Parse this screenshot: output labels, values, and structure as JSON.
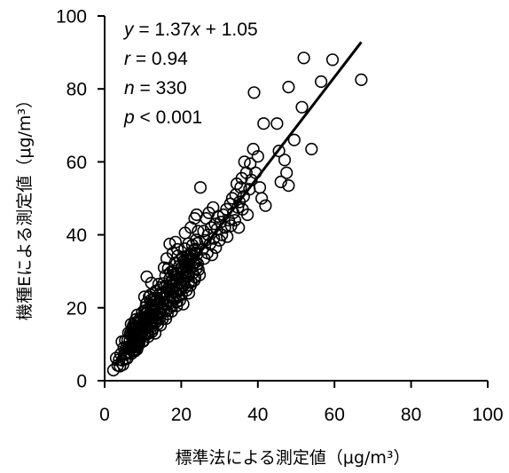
{
  "chart_data": {
    "type": "scatter",
    "xlabel": "標準法による測定値（μg/m³）",
    "ylabel": "機種Eによる測定値（μg/m³）",
    "xlim": [
      0,
      100
    ],
    "ylim": [
      0,
      100
    ],
    "xticks": [
      0,
      20,
      40,
      60,
      80,
      100
    ],
    "yticks": [
      0,
      20,
      40,
      60,
      80,
      100
    ],
    "grid": false,
    "colors": {
      "marker_stroke": "#000000",
      "line": "#000000",
      "axis": "#000000"
    },
    "regression": {
      "slope": 1.37,
      "intercept": 1.05,
      "x_range": [
        3,
        67
      ]
    },
    "annotation": [
      [
        {
          "text": "y",
          "italic": true
        },
        {
          "text": " = 1.37"
        },
        {
          "text": "x",
          "italic": true
        },
        {
          "text": " + 1.05"
        }
      ],
      [
        {
          "text": "r",
          "italic": true
        },
        {
          "text": " = 0.94"
        }
      ],
      [
        {
          "text": "n",
          "italic": true
        },
        {
          "text": " = 330"
        }
      ],
      [
        {
          "text": "p",
          "italic": true
        },
        {
          "text": " < 0.001"
        }
      ]
    ],
    "points": [
      [
        2.3,
        2.9
      ],
      [
        3.0,
        6.2
      ],
      [
        3.4,
        4.2
      ],
      [
        3.8,
        5.8
      ],
      [
        4.0,
        4.0
      ],
      [
        4.2,
        7.3
      ],
      [
        4.5,
        10.7
      ],
      [
        4.6,
        5.6
      ],
      [
        4.8,
        4.4
      ],
      [
        5.0,
        9.1
      ],
      [
        5.1,
        7.2
      ],
      [
        5.3,
        5.9
      ],
      [
        5.4,
        11.0
      ],
      [
        5.6,
        7.5
      ],
      [
        5.7,
        9.2
      ],
      [
        5.9,
        6.1
      ],
      [
        6.0,
        11.1
      ],
      [
        6.1,
        7.8
      ],
      [
        6.2,
        13.1
      ],
      [
        6.3,
        9.3
      ],
      [
        6.4,
        7.6
      ],
      [
        6.6,
        11.0
      ],
      [
        6.7,
        13.0
      ],
      [
        6.8,
        9.4
      ],
      [
        6.9,
        15.5
      ],
      [
        7.0,
        7.4
      ],
      [
        7.1,
        12.3
      ],
      [
        7.2,
        10.1
      ],
      [
        7.3,
        14.5
      ],
      [
        7.4,
        9.1
      ],
      [
        7.5,
        11.5
      ],
      [
        7.6,
        14.1
      ],
      [
        7.7,
        10.2
      ],
      [
        7.8,
        15.9
      ],
      [
        7.9,
        8.1
      ],
      [
        8.0,
        12.9
      ],
      [
        8.1,
        11.9
      ],
      [
        8.2,
        14.3
      ],
      [
        8.3,
        9.7
      ],
      [
        8.4,
        13.7
      ],
      [
        8.5,
        18.0
      ],
      [
        8.6,
        10.9
      ],
      [
        8.7,
        13.5
      ],
      [
        8.8,
        9.6
      ],
      [
        8.9,
        16.2
      ],
      [
        9.0,
        10.2
      ],
      [
        9.1,
        15.0
      ],
      [
        9.2,
        12.9
      ],
      [
        9.3,
        17.2
      ],
      [
        9.4,
        11.8
      ],
      [
        9.5,
        14.3
      ],
      [
        9.6,
        16.8
      ],
      [
        9.7,
        12.9
      ],
      [
        9.8,
        18.7
      ],
      [
        9.9,
        10.8
      ],
      [
        10.0,
        15.7
      ],
      [
        7.05,
        12.9
      ],
      [
        7.15,
        9.3
      ],
      [
        7.25,
        11.6
      ],
      [
        7.35,
        8.2
      ],
      [
        7.45,
        15.1
      ],
      [
        7.55,
        10.9
      ],
      [
        7.65,
        13.2
      ],
      [
        7.75,
        8.4
      ],
      [
        7.85,
        11.8
      ],
      [
        7.95,
        14.8
      ],
      [
        8.05,
        11.0
      ],
      [
        8.15,
        16.8
      ],
      [
        8.25,
        10.0
      ],
      [
        8.35,
        13.2
      ],
      [
        8.45,
        8.6
      ],
      [
        8.55,
        14.7
      ],
      [
        8.65,
        12.0
      ],
      [
        8.75,
        16.3
      ],
      [
        8.85,
        10.6
      ],
      [
        8.95,
        14.5
      ],
      [
        10.1,
        10.8
      ],
      [
        10.2,
        16.8
      ],
      [
        10.3,
        14.5
      ],
      [
        10.4,
        19.2
      ],
      [
        10.5,
        13.0
      ],
      [
        10.6,
        16.0
      ],
      [
        10.7,
        18.4
      ],
      [
        10.8,
        14.2
      ],
      [
        10.9,
        21.2
      ],
      [
        11.0,
        12.8
      ],
      [
        11.1,
        17.3
      ],
      [
        11.2,
        16.2
      ],
      [
        11.3,
        18.8
      ],
      [
        11.4,
        12.1
      ],
      [
        11.5,
        18.1
      ],
      [
        11.6,
        23.0
      ],
      [
        11.7,
        15.1
      ],
      [
        11.8,
        17.8
      ],
      [
        11.9,
        13.7
      ],
      [
        12.0,
        20.6
      ],
      [
        12.1,
        16.5
      ],
      [
        12.2,
        22.2
      ],
      [
        12.3,
        15.0
      ],
      [
        12.4,
        18.1
      ],
      [
        12.5,
        20.2
      ],
      [
        12.6,
        14.2
      ],
      [
        12.7,
        20.3
      ],
      [
        12.8,
        17.9
      ],
      [
        12.9,
        22.6
      ],
      [
        13.0,
        16.5
      ],
      [
        13.1,
        19.4
      ],
      [
        13.2,
        21.8
      ],
      [
        13.3,
        17.7
      ],
      [
        13.4,
        24.6
      ],
      [
        13.5,
        16.3
      ],
      [
        13.6,
        20.7
      ],
      [
        13.7,
        19.6
      ],
      [
        13.8,
        22.3
      ],
      [
        13.9,
        15.5
      ],
      [
        14.0,
        21.5
      ],
      [
        14.1,
        26.5
      ],
      [
        14.2,
        18.5
      ],
      [
        14.3,
        21.2
      ],
      [
        14.4,
        17.1
      ],
      [
        14.5,
        24.0
      ],
      [
        14.6,
        20.0
      ],
      [
        14.7,
        25.6
      ],
      [
        14.8,
        18.4
      ],
      [
        14.9,
        21.6
      ],
      [
        15.0,
        23.6
      ],
      [
        10.15,
        17.0
      ],
      [
        10.35,
        15.3
      ],
      [
        10.55,
        12.6
      ],
      [
        10.75,
        20.2
      ],
      [
        10.95,
        15.0
      ],
      [
        11.15,
        19.4
      ],
      [
        11.35,
        12.9
      ],
      [
        11.55,
        17.5
      ],
      [
        11.75,
        15.2
      ],
      [
        11.95,
        23.5
      ],
      [
        12.15,
        19.0
      ],
      [
        12.35,
        13.4
      ],
      [
        12.55,
        20.5
      ],
      [
        12.75,
        18.3
      ],
      [
        12.95,
        19.8
      ],
      [
        13.15,
        15.8
      ],
      [
        13.35,
        24.5
      ],
      [
        13.55,
        18.0
      ],
      [
        13.75,
        22.6
      ],
      [
        11.0,
        28.5
      ],
      [
        12.2,
        26.8
      ],
      [
        10.4,
        23.0
      ],
      [
        13.2,
        13.0
      ],
      [
        14.6,
        15.2
      ],
      [
        15.1,
        16.9
      ],
      [
        15.2,
        24.0
      ],
      [
        15.3,
        21.0
      ],
      [
        15.4,
        26.7
      ],
      [
        15.5,
        19.5
      ],
      [
        15.6,
        22.7
      ],
      [
        15.7,
        25.8
      ],
      [
        15.8,
        20.8
      ],
      [
        15.9,
        28.8
      ],
      [
        16.0,
        19.1
      ],
      [
        16.1,
        24.3
      ],
      [
        16.2,
        22.8
      ],
      [
        16.3,
        26.1
      ],
      [
        16.4,
        18.3
      ],
      [
        16.5,
        25.2
      ],
      [
        16.6,
        30.8
      ],
      [
        16.7,
        21.6
      ],
      [
        16.8,
        24.8
      ],
      [
        16.9,
        19.9
      ],
      [
        17.0,
        27.9
      ],
      [
        17.1,
        23.2
      ],
      [
        17.2,
        29.7
      ],
      [
        17.3,
        21.4
      ],
      [
        17.4,
        24.9
      ],
      [
        17.5,
        27.4
      ],
      [
        17.6,
        20.4
      ],
      [
        17.7,
        27.6
      ],
      [
        17.8,
        24.4
      ],
      [
        17.9,
        30.1
      ],
      [
        18.0,
        22.9
      ],
      [
        18.1,
        26.2
      ],
      [
        18.2,
        29.2
      ],
      [
        18.3,
        24.2
      ],
      [
        18.4,
        32.3
      ],
      [
        18.5,
        22.5
      ],
      [
        18.6,
        27.7
      ],
      [
        18.7,
        26.3
      ],
      [
        18.8,
        29.5
      ],
      [
        18.9,
        21.7
      ],
      [
        19.0,
        28.6
      ],
      [
        19.1,
        34.2
      ],
      [
        19.2,
        25.1
      ],
      [
        19.3,
        28.2
      ],
      [
        19.4,
        23.3
      ],
      [
        19.5,
        31.4
      ],
      [
        19.6,
        26.6
      ],
      [
        19.7,
        33.1
      ],
      [
        19.8,
        24.8
      ],
      [
        19.9,
        28.3
      ],
      [
        20.0,
        30.9
      ],
      [
        15.5,
        31.0
      ],
      [
        16.2,
        33.5
      ],
      [
        17.0,
        37.5
      ],
      [
        17.8,
        35.0
      ],
      [
        18.5,
        38.0
      ],
      [
        19.0,
        36.0
      ],
      [
        16.0,
        17.0
      ],
      [
        17.5,
        19.0
      ],
      [
        18.8,
        20.5
      ],
      [
        19.6,
        22.0
      ],
      [
        20.1,
        23.6
      ],
      [
        20.2,
        31.1
      ],
      [
        20.3,
        27.7
      ],
      [
        20.4,
        33.8
      ],
      [
        20.5,
        26.0
      ],
      [
        20.6,
        29.8
      ],
      [
        20.7,
        32.9
      ],
      [
        20.8,
        27.3
      ],
      [
        20.9,
        36.2
      ],
      [
        21.0,
        25.6
      ],
      [
        21.1,
        31.4
      ],
      [
        21.2,
        29.5
      ],
      [
        21.3,
        33.1
      ],
      [
        21.4,
        24.8
      ],
      [
        21.5,
        32.2
      ],
      [
        21.6,
        31.1
      ],
      [
        21.7,
        34.3
      ],
      [
        21.8,
        28.7
      ],
      [
        21.9,
        37.6
      ],
      [
        22.0,
        27.0
      ],
      [
        22.1,
        32.7
      ],
      [
        22.2,
        30.9
      ],
      [
        22.3,
        34.5
      ],
      [
        22.4,
        26.1
      ],
      [
        22.5,
        33.6
      ],
      [
        22.6,
        27.0
      ],
      [
        22.7,
        34.6
      ],
      [
        22.8,
        31.1
      ],
      [
        22.9,
        37.2
      ],
      [
        23.0,
        29.5
      ],
      [
        23.1,
        34.1
      ],
      [
        23.2,
        32.2
      ],
      [
        23.3,
        35.9
      ],
      [
        23.4,
        27.5
      ],
      [
        23.5,
        35.0
      ],
      [
        23.6,
        28.4
      ],
      [
        23.7,
        36.1
      ],
      [
        23.8,
        32.5
      ],
      [
        23.9,
        38.6
      ],
      [
        24.0,
        30.8
      ],
      [
        24.1,
        34.6
      ],
      [
        24.2,
        37.7
      ],
      [
        24.3,
        32.1
      ],
      [
        24.4,
        41.0
      ],
      [
        24.5,
        30.4
      ],
      [
        25.0,
        53.0
      ],
      [
        23.5,
        44.5
      ],
      [
        24.0,
        45.5
      ],
      [
        22.5,
        42.0
      ],
      [
        21.0,
        40.5
      ],
      [
        20.5,
        21.0
      ],
      [
        22.0,
        24.0
      ],
      [
        24.8,
        29.0
      ],
      [
        25.5,
        36.0
      ],
      [
        25.8,
        41.0
      ],
      [
        26.0,
        33.5
      ],
      [
        26.3,
        38.5
      ],
      [
        26.5,
        44.5
      ],
      [
        26.8,
        35.0
      ],
      [
        27.0,
        40.0
      ],
      [
        27.2,
        46.0
      ],
      [
        27.5,
        37.5
      ],
      [
        27.8,
        42.0
      ],
      [
        28.0,
        34.5
      ],
      [
        28.3,
        47.5
      ],
      [
        28.5,
        39.0
      ],
      [
        28.8,
        43.0
      ],
      [
        29.0,
        36.5
      ],
      [
        29.3,
        41.5
      ],
      [
        29.6,
        45.0
      ],
      [
        30.0,
        38.5
      ],
      [
        30.3,
        43.5
      ],
      [
        30.6,
        40.0
      ],
      [
        31.0,
        45.5
      ],
      [
        31.4,
        42.0
      ],
      [
        31.8,
        47.0
      ],
      [
        32.0,
        39.5
      ],
      [
        32.4,
        44.0
      ],
      [
        32.8,
        48.5
      ],
      [
        33.0,
        42.5
      ],
      [
        33.3,
        50.0
      ],
      [
        33.6,
        46.0
      ],
      [
        34.0,
        44.0
      ],
      [
        34.2,
        51.0
      ],
      [
        34.5,
        54.0
      ],
      [
        34.8,
        47.5
      ],
      [
        35.0,
        42.0
      ],
      [
        35.2,
        49.0
      ],
      [
        35.5,
        53.0
      ],
      [
        35.8,
        55.5
      ],
      [
        36.0,
        47.0
      ],
      [
        36.3,
        50.5
      ],
      [
        36.5,
        60.0
      ],
      [
        37.0,
        57.0
      ],
      [
        37.3,
        45.5
      ],
      [
        37.8,
        52.5
      ],
      [
        38.0,
        59.5
      ],
      [
        38.3,
        55.0
      ],
      [
        38.8,
        63.5
      ],
      [
        39.0,
        79.0
      ],
      [
        39.4,
        57.0
      ],
      [
        40.0,
        61.5
      ],
      [
        40.5,
        53.0
      ],
      [
        41.0,
        50.0
      ],
      [
        41.5,
        70.5
      ],
      [
        42.0,
        48.0
      ],
      [
        45.0,
        70.5
      ],
      [
        45.5,
        63.0
      ],
      [
        46.0,
        54.5
      ],
      [
        47.0,
        60.5
      ],
      [
        47.5,
        57.0
      ],
      [
        48.0,
        53.5
      ],
      [
        48.0,
        80.5
      ],
      [
        49.5,
        66.0
      ],
      [
        51.5,
        75.0
      ],
      [
        52.0,
        88.5
      ],
      [
        54.0,
        63.5
      ],
      [
        56.5,
        82.0
      ],
      [
        59.5,
        88.0
      ],
      [
        67.0,
        82.5
      ]
    ]
  }
}
